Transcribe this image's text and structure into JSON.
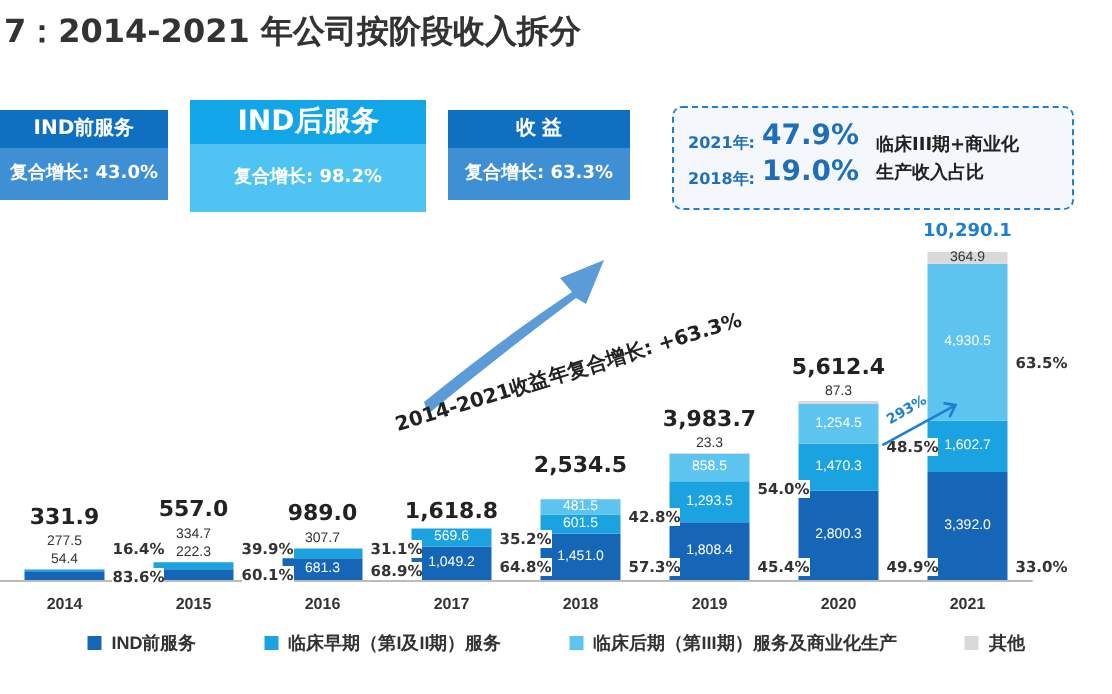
{
  "chart_data": {
    "type": "bar",
    "stacked": true,
    "title": "7：2014-2021 年公司按阶段收入拆分",
    "categories": [
      "2014",
      "2015",
      "2016",
      "2017",
      "2018",
      "2019",
      "2020",
      "2021"
    ],
    "series": [
      {
        "name": "IND前服务",
        "color": "#1666b8",
        "values": [
          277.5,
          334.7,
          681.3,
          1049.2,
          1451.0,
          1808.4,
          2800.3,
          3392.0
        ],
        "value_labels": [
          "277.5",
          "334.7",
          "681.3",
          "1,049.2",
          "1,451.0",
          "1,808.4",
          "2,800.3",
          "3,392.0"
        ]
      },
      {
        "name": "临床早期（第I及II期）服务",
        "color": "#1aa3e0",
        "values": [
          54.4,
          222.3,
          307.7,
          569.6,
          601.5,
          1293.5,
          1470.3,
          1602.7
        ],
        "value_labels": [
          "54.4",
          "222.3",
          "307.7",
          "569.6",
          "601.5",
          "1,293.5",
          "1,470.3",
          "1,602.7"
        ]
      },
      {
        "name": "临床后期（第III期）服务及商业化生产",
        "color": "#5cc4ef",
        "values": [
          null,
          null,
          null,
          null,
          481.5,
          858.5,
          1254.5,
          4930.5
        ],
        "value_labels": [
          null,
          null,
          null,
          null,
          "481.5",
          "858.5",
          "1,254.5",
          "4,930.5"
        ]
      },
      {
        "name": "其他",
        "color": "#d9d9d9",
        "values": [
          null,
          null,
          null,
          null,
          0.5,
          23.3,
          87.3,
          364.9
        ],
        "value_labels": [
          null,
          null,
          null,
          null,
          null,
          "23.3",
          "87.3",
          "364.9"
        ]
      }
    ],
    "totals": [
      "331.9",
      "557.0",
      "989.0",
      "1,618.8",
      "2,534.5",
      "3,983.7",
      "5,612.4",
      "10,290.1"
    ],
    "tick_labels": "x",
    "legend": "bottom",
    "annotations": [
      "IND前服务",
      "复合增长: 43.0%",
      "IND后服务",
      "复合增长: 98.2%",
      "收  益",
      "复合增长: 63.3%",
      "2021年: ",
      "47.9%",
      "2018年: ",
      "19.0%",
      "临床III期+商业化",
      "生产收入占比",
      "2014-2021收益年复合增长: +63.3%",
      "293%",
      "16.4%",
      "83.6%",
      "39.9%",
      "60.1%",
      "31.1%",
      "68.9%",
      "35.2%",
      "64.8%",
      "42.8%",
      "57.3%",
      "54.0%",
      "45.4%",
      "48.5%",
      "49.9%",
      "63.5%",
      "33.0%"
    ]
  }
}
